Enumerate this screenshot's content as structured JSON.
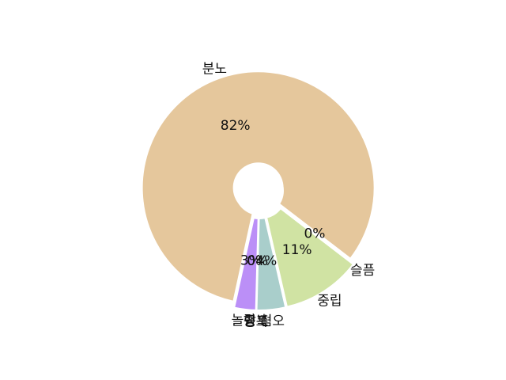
{
  "chart_data": {
    "type": "pie",
    "style": "donut",
    "title": "",
    "slices": [
      {
        "label": "분노",
        "value": 82,
        "pct_label": "82%",
        "color": "#e5c79c"
      },
      {
        "label": "놀람",
        "value": 3,
        "pct_label": "3%",
        "color": "#bb8ff7"
      },
      {
        "label": "공포",
        "value": 0,
        "pct_label": "0%",
        "color": "#e5c79c"
      },
      {
        "label": "행복",
        "value": 0,
        "pct_label": "0%",
        "color": "#e5c79c"
      },
      {
        "label": "혐오",
        "value": 4,
        "pct_label": "4%",
        "color": "#a9cecb"
      },
      {
        "label": "중립",
        "value": 11,
        "pct_label": "11%",
        "color": "#d0e3a3"
      },
      {
        "label": "슬픔",
        "value": 0,
        "pct_label": "0%",
        "color": "#e5c79c"
      }
    ]
  }
}
